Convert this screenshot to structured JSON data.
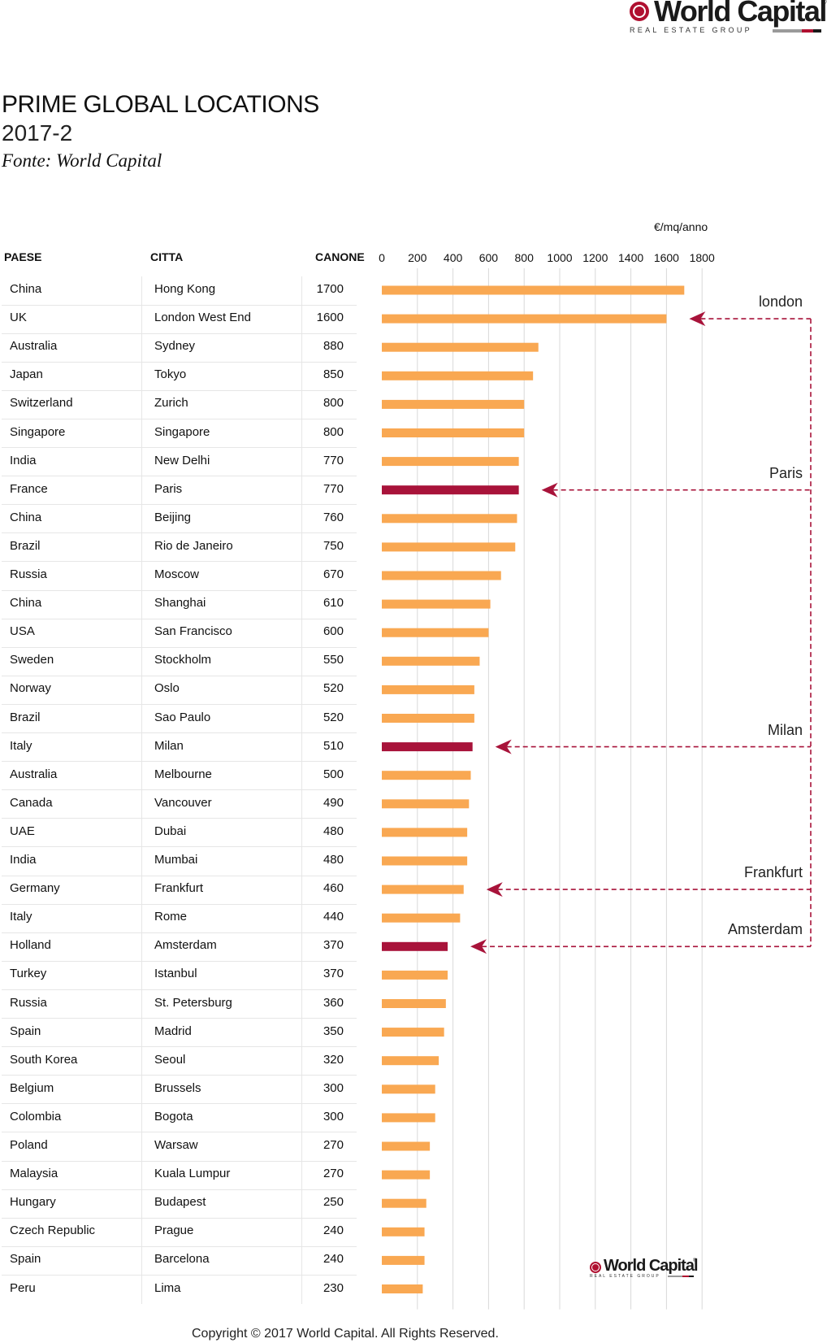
{
  "brand": {
    "name": "World Capital",
    "registered": "®",
    "group": "REAL ESTATE GROUP",
    "colors": {
      "red": "#b01030",
      "dark": "#1a1a1a",
      "gray": "#9a9a9a"
    }
  },
  "header": {
    "title": "PRIME GLOBAL LOCATIONS",
    "period": "2017-2",
    "source": "Fonte: World Capital"
  },
  "table": {
    "col_country": "PAESE",
    "col_city": "CITTA",
    "col_rent": "CANONE",
    "rows": [
      {
        "country": "China",
        "city": "Hong Kong",
        "rent": "1700"
      },
      {
        "country": "UK",
        "city": "London West End",
        "rent": "1600"
      },
      {
        "country": "Australia",
        "city": "Sydney",
        "rent": "880"
      },
      {
        "country": "Japan",
        "city": "Tokyo",
        "rent": "850"
      },
      {
        "country": "Switzerland",
        "city": "Zurich",
        "rent": "800"
      },
      {
        "country": "Singapore",
        "city": "Singapore",
        "rent": "800"
      },
      {
        "country": "India",
        "city": "New Delhi",
        "rent": "770"
      },
      {
        "country": "France",
        "city": "Paris",
        "rent": "770"
      },
      {
        "country": "China",
        "city": "Beijing",
        "rent": "760"
      },
      {
        "country": "Brazil",
        "city": "Rio de Janeiro",
        "rent": "750"
      },
      {
        "country": "Russia",
        "city": "Moscow",
        "rent": "670"
      },
      {
        "country": "China",
        "city": "Shanghai",
        "rent": "610"
      },
      {
        "country": "USA",
        "city": "San Francisco",
        "rent": "600"
      },
      {
        "country": "Sweden",
        "city": "Stockholm",
        "rent": "550"
      },
      {
        "country": "Norway",
        "city": "Oslo",
        "rent": "520"
      },
      {
        "country": "Brazil",
        "city": "Sao Paulo",
        "rent": "520"
      },
      {
        "country": "Italy",
        "city": "Milan",
        "rent": "510"
      },
      {
        "country": "Australia",
        "city": "Melbourne",
        "rent": "500"
      },
      {
        "country": "Canada",
        "city": "Vancouver",
        "rent": "490"
      },
      {
        "country": "UAE",
        "city": "Dubai",
        "rent": "480"
      },
      {
        "country": "India",
        "city": "Mumbai",
        "rent": "480"
      },
      {
        "country": "Germany",
        "city": "Frankfurt",
        "rent": "460"
      },
      {
        "country": "Italy",
        "city": "Rome",
        "rent": "440"
      },
      {
        "country": "Holland",
        "city": "Amsterdam",
        "rent": "370"
      },
      {
        "country": "Turkey",
        "city": "Istanbul",
        "rent": "370"
      },
      {
        "country": "Russia",
        "city": "St. Petersburg",
        "rent": "360"
      },
      {
        "country": "Spain",
        "city": "Madrid",
        "rent": "350"
      },
      {
        "country": "South Korea",
        "city": "Seoul",
        "rent": "320"
      },
      {
        "country": "Belgium",
        "city": "Brussels",
        "rent": "300"
      },
      {
        "country": "Colombia",
        "city": "Bogota",
        "rent": "300"
      },
      {
        "country": "Poland",
        "city": "Warsaw",
        "rent": "270"
      },
      {
        "country": "Malaysia",
        "city": "Kuala Lumpur",
        "rent": "270"
      },
      {
        "country": "Hungary",
        "city": "Budapest",
        "rent": "250"
      },
      {
        "country": "Czech Republic",
        "city": "Prague",
        "rent": "240"
      },
      {
        "country": "Spain",
        "city": "Barcelona",
        "rent": "240"
      },
      {
        "country": "Peru",
        "city": "Lima",
        "rent": "230"
      }
    ]
  },
  "chart_data": {
    "type": "bar",
    "orientation": "horizontal",
    "unit": "€/mq/anno",
    "categories": [
      "Hong Kong",
      "London West End",
      "Sydney",
      "Tokyo",
      "Zurich",
      "Singapore",
      "New Delhi",
      "Paris",
      "Beijing",
      "Rio de Janeiro",
      "Moscow",
      "Shanghai",
      "San Francisco",
      "Stockholm",
      "Oslo",
      "Sao Paulo",
      "Milan",
      "Melbourne",
      "Vancouver",
      "Dubai",
      "Mumbai",
      "Frankfurt",
      "Rome",
      "Amsterdam",
      "Istanbul",
      "St. Petersburg",
      "Madrid",
      "Seoul",
      "Brussels",
      "Bogota",
      "Warsaw",
      "Kuala Lumpur",
      "Budapest",
      "Prague",
      "Barcelona",
      "Lima"
    ],
    "values": [
      1700,
      1600,
      880,
      850,
      800,
      800,
      770,
      770,
      760,
      750,
      670,
      610,
      600,
      550,
      520,
      520,
      510,
      500,
      490,
      480,
      480,
      460,
      440,
      370,
      370,
      360,
      350,
      320,
      300,
      300,
      270,
      270,
      250,
      240,
      240,
      230
    ],
    "highlighted": [
      "Paris",
      "Milan",
      "Amsterdam"
    ],
    "xlim": [
      0,
      1800
    ],
    "xticks": [
      0,
      200,
      400,
      600,
      800,
      1000,
      1200,
      1400,
      1600,
      1800
    ],
    "grid": true,
    "colors": {
      "bar": "#f9a852",
      "highlight": "#a8133a",
      "grid": "#d9d9d9",
      "arrow": "#a8133a"
    },
    "callouts": [
      {
        "label": "london",
        "target": "London West End"
      },
      {
        "label": "Paris",
        "target": "Paris"
      },
      {
        "label": "Milan",
        "target": "Milan"
      },
      {
        "label": "Frankfurt",
        "target": "Frankfurt"
      },
      {
        "label": "Amsterdam",
        "target": "Amsterdam"
      }
    ]
  },
  "footer": {
    "copyright": "Copyright © 2017 World Capital. All Rights Reserved."
  }
}
